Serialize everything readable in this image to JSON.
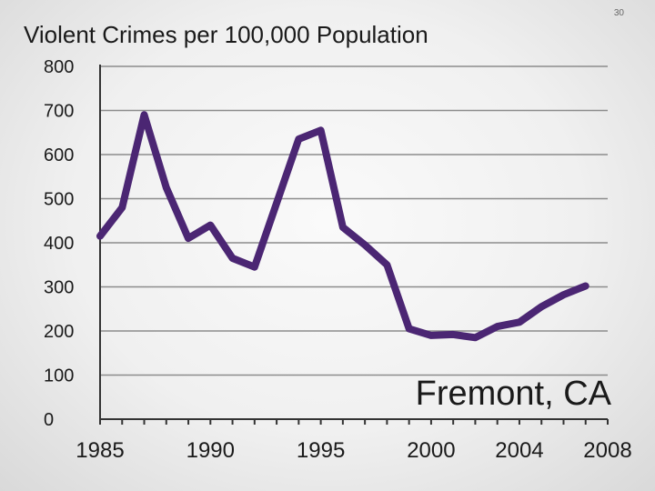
{
  "slide": {
    "number": "30"
  },
  "chart_data": {
    "type": "line",
    "title": "Violent Crimes per 100,000 Population",
    "xlabel": "",
    "ylabel": "",
    "ylim": [
      0,
      800
    ],
    "yticks": [
      0,
      100,
      200,
      300,
      400,
      500,
      600,
      700,
      800
    ],
    "xlim": [
      1985,
      2008
    ],
    "xtick_labels": [
      "1985",
      "1990",
      "1995",
      "2000",
      "2004",
      "2008"
    ],
    "xtick_values": [
      1985,
      1990,
      1995,
      2000,
      2004,
      2008
    ],
    "grid": true,
    "annotation": "Fremont, CA",
    "series": [
      {
        "color": "#4b2673",
        "x": [
          1985,
          1986,
          1987,
          1988,
          1989,
          1990,
          1991,
          1992,
          1993,
          1994,
          1995,
          1996,
          1997,
          1998,
          1999,
          2000,
          2001,
          2002,
          2003,
          2004,
          2005,
          2006,
          2007
        ],
        "values": [
          415,
          480,
          690,
          525,
          410,
          440,
          365,
          345,
          490,
          635,
          655,
          435,
          395,
          350,
          205,
          190,
          192,
          185,
          210,
          220,
          255,
          282,
          302
        ]
      }
    ]
  }
}
